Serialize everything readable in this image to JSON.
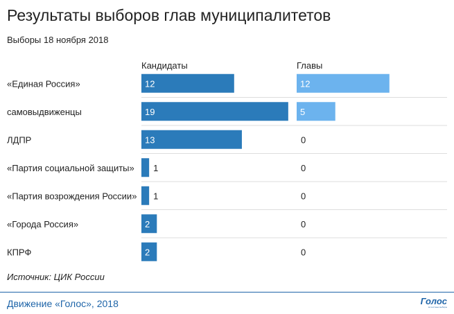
{
  "colors": {
    "candidates_bar": "#2b7bba",
    "heads_bar": "#6cb3ee",
    "row_divider": "#dddddd",
    "footer": "#1e64a8"
  },
  "chart_data": {
    "type": "bar",
    "title": "Результаты выборов глав муниципалитетов",
    "subtitle": "Выборы 18 ноября 2018",
    "categories": [
      "«Единая Россия»",
      "самовыдвиженцы",
      "ЛДПР",
      "«Партия социальной защиты»",
      "«Партия возрождения России»",
      "«Города Россия»",
      "КПРФ"
    ],
    "series": [
      {
        "name": "Кандидаты",
        "values": [
          12,
          19,
          13,
          1,
          1,
          2,
          2
        ]
      },
      {
        "name": "Главы",
        "values": [
          12,
          5,
          0,
          0,
          0,
          0,
          0
        ]
      }
    ],
    "source": "Источник: ЦИК России"
  },
  "footer": {
    "text": "Движение «Голос», 2018",
    "logo_word": "Голос",
    "logo_sub": "за честные выборы"
  }
}
